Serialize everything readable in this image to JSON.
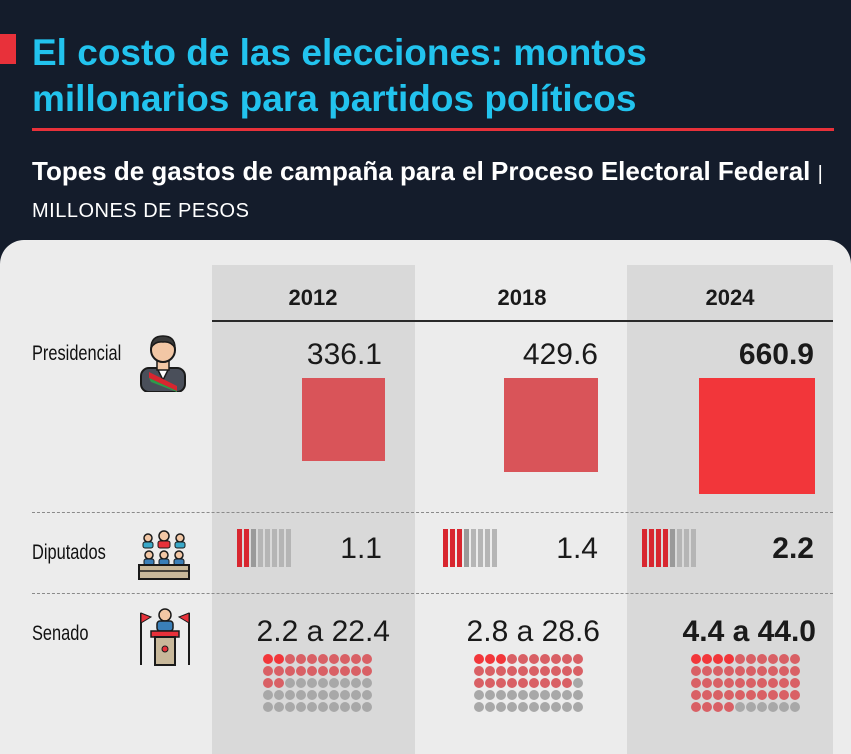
{
  "header": {
    "title": "El costo de las elecciones: montos millonarios para partidos políticos",
    "subtitle": "Topes de gastos de campaña para el Proceso Electoral Federal",
    "unit_separator": "|",
    "unit": "MILLONES DE PESOS"
  },
  "chart_data": {
    "type": "table",
    "categories": [
      "2012",
      "2018",
      "2024"
    ],
    "rows": [
      {
        "label": "Presidencial",
        "icon": "president-icon",
        "values": [
          "336.1",
          "429.6",
          "660.9"
        ]
      },
      {
        "label": "Diputados",
        "icon": "deputies-icon",
        "values": [
          "1.1",
          "1.4",
          "2.2"
        ]
      },
      {
        "label": "Senado",
        "icon": "senate-icon",
        "values": [
          "2.2 a 22.4",
          "2.8 a 28.6",
          "4.4 a 44.0"
        ]
      }
    ],
    "presidencial_numeric": [
      336.1,
      429.6,
      660.9
    ],
    "diputados_numeric": [
      1.1,
      1.4,
      2.2
    ],
    "senado_range": [
      [
        2.2,
        22.4
      ],
      [
        2.8,
        28.6
      ],
      [
        4.4,
        44.0
      ]
    ],
    "highlight_year": "2024"
  },
  "colors": {
    "background": "#141c2b",
    "title": "#22c3ee",
    "accent": "#e8313a",
    "square": "#d95459",
    "square_highlight": "#f2363a",
    "panel": "#ececec",
    "column_shade": "#d9d9d9"
  }
}
